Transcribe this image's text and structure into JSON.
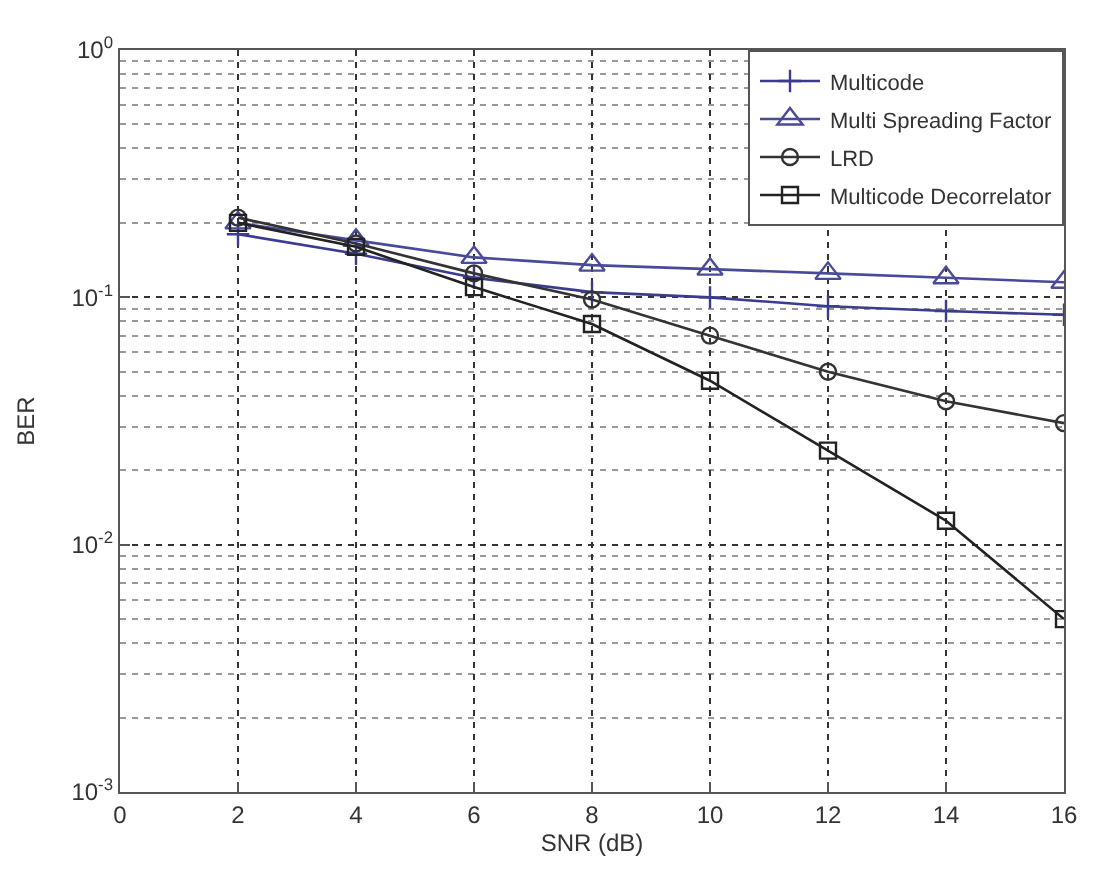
{
  "chart_data": {
    "type": "line",
    "xlabel": "SNR (dB)",
    "ylabel": "BER",
    "x": [
      2,
      4,
      6,
      8,
      10,
      12,
      14,
      16
    ],
    "series": [
      {
        "name": "Multicode",
        "color": "#3b3b8f",
        "marker": "cross",
        "values": [
          0.18,
          0.15,
          0.12,
          0.105,
          0.1,
          0.092,
          0.088,
          0.085
        ]
      },
      {
        "name": "Multi Spreading Factor",
        "color": "#4a4a9a",
        "marker": "triangle",
        "values": [
          0.2,
          0.17,
          0.145,
          0.135,
          0.13,
          0.125,
          0.12,
          0.115
        ]
      },
      {
        "name": "LRD",
        "color": "#333333",
        "marker": "circle",
        "values": [
          0.21,
          0.165,
          0.125,
          0.098,
          0.07,
          0.05,
          0.038,
          0.031
        ]
      },
      {
        "name": "Multicode Decorrelator",
        "color": "#222222",
        "marker": "square",
        "values": [
          0.2,
          0.16,
          0.11,
          0.078,
          0.046,
          0.024,
          0.0125,
          0.005
        ]
      }
    ],
    "xlim": [
      0,
      16
    ],
    "xticks": [
      0,
      2,
      4,
      6,
      8,
      10,
      12,
      14,
      16
    ],
    "ylim": [
      0.001,
      1
    ],
    "log": true,
    "yticks": [
      {
        "value": 0.001,
        "label": "10$^{-3}$"
      },
      {
        "value": 0.01,
        "label": "10$^{-2}$"
      },
      {
        "value": 0.1,
        "label": "10$^{-1}$"
      },
      {
        "value": 1,
        "label": "10$^{0}$"
      }
    ],
    "grid": true,
    "legend": "top right",
    "line_style": "solid"
  }
}
